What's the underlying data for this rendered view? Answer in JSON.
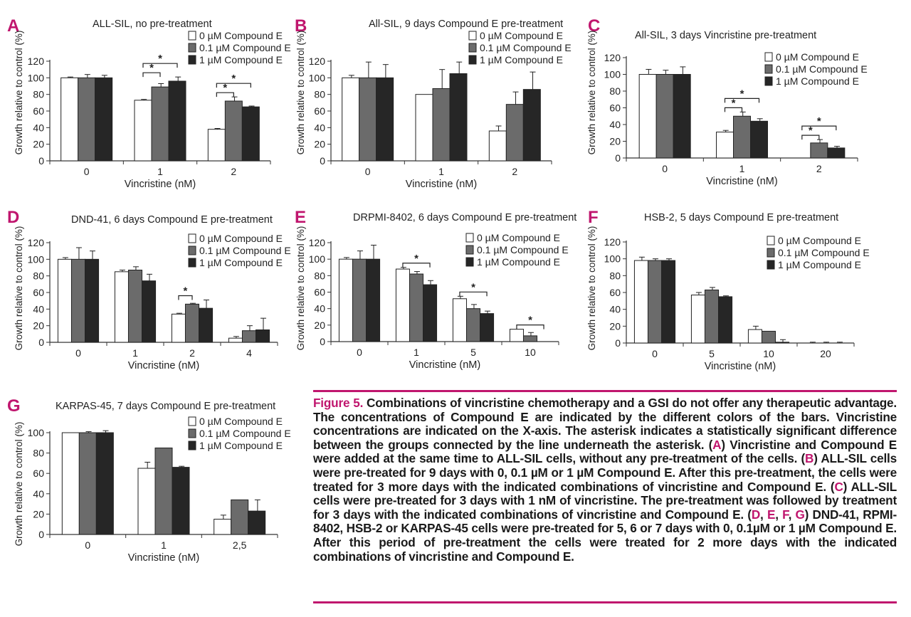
{
  "legend_labels": [
    "0 µM Compound E",
    "0.1 µM Compound E",
    "1 µM Compound E"
  ],
  "colors": {
    "series": [
      "#ffffff",
      "#6b6b6b",
      "#262626"
    ],
    "accent": "#c0166e",
    "axis": "#333333"
  },
  "chart_data": [
    {
      "panel": "A",
      "type": "bar",
      "title": "ALL-SIL, no pre-treatment",
      "xlabel": "Vincristine (nM)",
      "ylabel": "Growth relative to control (%)",
      "ylim": [
        0,
        120
      ],
      "categories": [
        "0",
        "1",
        "2"
      ],
      "series": [
        {
          "name": "0 µM Compound E",
          "values": [
            100,
            73,
            38
          ],
          "errors": [
            1,
            1,
            1
          ]
        },
        {
          "name": "0.1 µM Compound E",
          "values": [
            100,
            89,
            72
          ],
          "errors": [
            4,
            4,
            5
          ]
        },
        {
          "name": "1 µM Compound E",
          "values": [
            100,
            96,
            65
          ],
          "errors": [
            3,
            5,
            1
          ]
        }
      ],
      "significance": [
        {
          "category": 1,
          "from": 0,
          "to": 1,
          "label": "*"
        },
        {
          "category": 1,
          "from": 0,
          "to": 2,
          "label": "*"
        },
        {
          "category": 2,
          "from": 0,
          "to": 1,
          "label": "*"
        },
        {
          "category": 2,
          "from": 0,
          "to": 2,
          "label": "*"
        }
      ]
    },
    {
      "panel": "B",
      "type": "bar",
      "title": "All-SIL, 9 days Compound E pre-treatment",
      "xlabel": "Vincristine (nM)",
      "ylabel": "Growth relative to control (%)",
      "ylim": [
        0,
        120
      ],
      "categories": [
        "0",
        "1",
        "2"
      ],
      "series": [
        {
          "name": "0 µM Compound E",
          "values": [
            100,
            80,
            36
          ],
          "errors": [
            3,
            0,
            6
          ]
        },
        {
          "name": "0.1 µM Compound E",
          "values": [
            100,
            87,
            68
          ],
          "errors": [
            19,
            23,
            15
          ]
        },
        {
          "name": "1 µM Compound E",
          "values": [
            100,
            105,
            86
          ],
          "errors": [
            16,
            14,
            21
          ]
        }
      ],
      "significance": []
    },
    {
      "panel": "C",
      "type": "bar",
      "title": "All-SIL, 3 days Vincristine pre-treatment",
      "xlabel": "Vincristine (nM)",
      "ylabel": "Growth relative to control (%)",
      "ylim": [
        0,
        120
      ],
      "categories": [
        "0",
        "1",
        "2"
      ],
      "series": [
        {
          "name": "0 µM Compound E",
          "values": [
            100,
            31,
            0
          ],
          "errors": [
            6,
            2,
            0
          ]
        },
        {
          "name": "0.1 µM Compound E",
          "values": [
            100,
            50,
            18
          ],
          "errors": [
            5,
            5,
            4
          ]
        },
        {
          "name": "1 µM Compound E",
          "values": [
            100,
            44,
            12
          ],
          "errors": [
            9,
            3,
            2
          ]
        }
      ],
      "significance": [
        {
          "category": 1,
          "from": 0,
          "to": 1,
          "label": "*"
        },
        {
          "category": 1,
          "from": 0,
          "to": 2,
          "label": "*"
        },
        {
          "category": 2,
          "from": 0,
          "to": 1,
          "label": "*"
        },
        {
          "category": 2,
          "from": 0,
          "to": 2,
          "label": "*"
        }
      ]
    },
    {
      "panel": "D",
      "type": "bar",
      "title": "DND-41, 6 days Compound E pre-treatment",
      "xlabel": "Vincristine (nM)",
      "ylabel": "Growth relative to control (%)",
      "ylim": [
        0,
        120
      ],
      "categories": [
        "0",
        "1",
        "2",
        "4"
      ],
      "series": [
        {
          "name": "0 µM Compound E",
          "values": [
            100,
            85,
            34,
            5
          ],
          "errors": [
            2,
            2,
            1,
            2
          ]
        },
        {
          "name": "0.1 µM Compound E",
          "values": [
            100,
            87,
            46,
            14
          ],
          "errors": [
            14,
            4,
            1,
            6
          ]
        },
        {
          "name": "1 µM Compound E",
          "values": [
            100,
            74,
            41,
            15
          ],
          "errors": [
            10,
            8,
            10,
            14
          ]
        }
      ],
      "significance": [
        {
          "category": 2,
          "from": 0,
          "to": 1,
          "label": "*"
        }
      ]
    },
    {
      "panel": "E",
      "type": "bar",
      "title": "DRPMI-8402, 6 days Compound E pre-treatment",
      "xlabel": "Vincristine (nM)",
      "ylabel": "Growth relative to control (%)",
      "ylim": [
        0,
        120
      ],
      "categories": [
        "0",
        "1",
        "5",
        "10"
      ],
      "series": [
        {
          "name": "0 µM Compound E",
          "values": [
            100,
            88,
            52,
            15
          ],
          "errors": [
            2,
            2,
            3,
            0
          ]
        },
        {
          "name": "0.1 µM Compound E",
          "values": [
            100,
            82,
            40,
            7
          ],
          "errors": [
            10,
            3,
            5,
            4
          ]
        },
        {
          "name": "1 µM Compound E",
          "values": [
            100,
            69,
            34,
            0
          ],
          "errors": [
            17,
            5,
            3,
            0
          ]
        }
      ],
      "significance": [
        {
          "category": 1,
          "from": 0,
          "to": 2,
          "label": "*"
        },
        {
          "category": 2,
          "from": 0,
          "to": 2,
          "label": "*"
        },
        {
          "category": 3,
          "from": 0,
          "to": 2,
          "label": "*"
        }
      ]
    },
    {
      "panel": "F",
      "type": "bar",
      "title": "HSB-2, 5 days Compound E pre-treatment",
      "xlabel": "Vincristine (nM)",
      "ylabel": "Growth relative to control (%)",
      "ylim": [
        0,
        120
      ],
      "categories": [
        "0",
        "5",
        "10",
        "20"
      ],
      "series": [
        {
          "name": "0 µM Compound E",
          "values": [
            98,
            57,
            16,
            0
          ],
          "errors": [
            4,
            3,
            4,
            1
          ]
        },
        {
          "name": "0.1 µM Compound E",
          "values": [
            98,
            63,
            14,
            0
          ],
          "errors": [
            2,
            3,
            0,
            1
          ]
        },
        {
          "name": "1 µM Compound E",
          "values": [
            98,
            55,
            1,
            0
          ],
          "errors": [
            2,
            1,
            3,
            1
          ]
        }
      ],
      "significance": []
    },
    {
      "panel": "G",
      "type": "bar",
      "title": "KARPAS-45, 7 days Compound E pre-treatment",
      "xlabel": "Vincristine (nM)",
      "ylabel": "Growth relative to control (%)",
      "ylim": [
        0,
        100
      ],
      "categories": [
        "0",
        "1",
        "2,5"
      ],
      "series": [
        {
          "name": "0 µM Compound E",
          "values": [
            100,
            65,
            15
          ],
          "errors": [
            0,
            6,
            4
          ]
        },
        {
          "name": "0.1 µM Compound E",
          "values": [
            100,
            85,
            34
          ],
          "errors": [
            1,
            0,
            0
          ]
        },
        {
          "name": "1 µM Compound E",
          "values": [
            100,
            66,
            23
          ],
          "errors": [
            2,
            1,
            11
          ]
        }
      ],
      "significance": []
    }
  ],
  "caption": {
    "label": "Figure 5.",
    "parts": [
      {
        "t": " Combinations of vincristine chemotherapy and a GSI do not offer any therapeutic advantage. The concentrations of Compound E are indicated by the different colors of the bars. Vincristine concentrations are indicated on the X-axis. The asterisk indicates a statistically significant difference between the groups connected by the line underneath the asterisk. ("
      },
      {
        "t": "A",
        "hl": true
      },
      {
        "t": ") Vincristine and Compound E were added at the same time to ALL-SIL cells, without any pre-treatment of the cells. ("
      },
      {
        "t": "B",
        "hl": true
      },
      {
        "t": ") ALL-SIL cells were pre-treated for 9 days with 0, 0.1 µM or 1 µM Compound E. After this pre-treatment, the cells were treated for 3 more days with the indicated combinations of vincristine and Compound E. ("
      },
      {
        "t": "C",
        "hl": true
      },
      {
        "t": ") ALL-SIL cells were pre-treated for 3 days with 1 nM of vincristine. The pre-treatment was followed by treatment for 3 days with the indicated combinations of vincristine and Compound E. ("
      },
      {
        "t": "D",
        "hl": true
      },
      {
        "t": ",  "
      },
      {
        "t": "E",
        "hl": true
      },
      {
        "t": ", "
      },
      {
        "t": "F",
        "hl": true
      },
      {
        "t": ", "
      },
      {
        "t": "G",
        "hl": true
      },
      {
        "t": ") DND-41, RPMI-8402, HSB-2 or KARPAS-45 cells were pre-treated for 5, 6 or 7 days with 0, 0.1µM or 1 µM Compound E. After this period of pre-treatment the cells were treated for 2 more days with the indicated combinations of vincristine and Compound E."
      }
    ]
  }
}
